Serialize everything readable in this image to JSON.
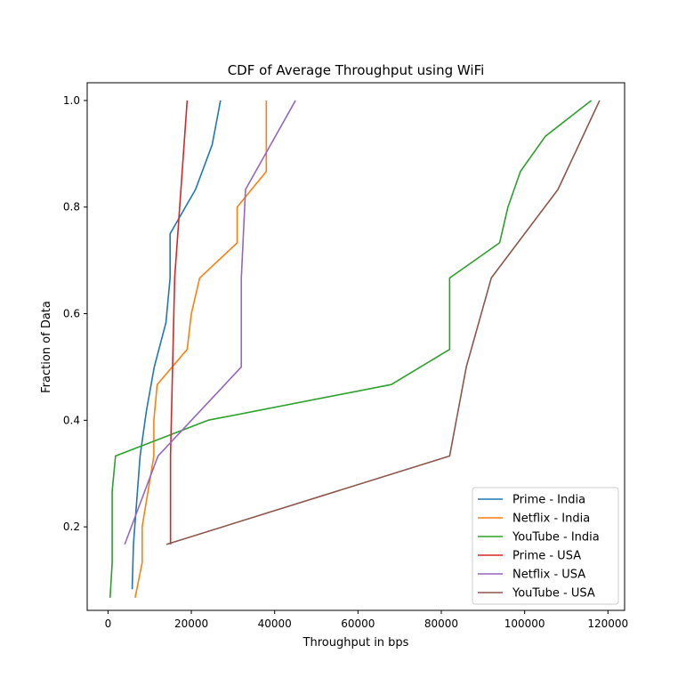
{
  "chart_data": {
    "type": "line",
    "title": "CDF of Average Throughput using WiFi",
    "xlabel": "Throughput in bps",
    "ylabel": "Fraction of Data",
    "xlim": [
      -5000,
      124000
    ],
    "ylim": [
      0.0433,
      1.0333
    ],
    "xticks": [
      0,
      20000,
      40000,
      60000,
      80000,
      100000,
      120000
    ],
    "xtick_labels": [
      "0",
      "20000",
      "40000",
      "60000",
      "80000",
      "100000",
      "120000"
    ],
    "yticks": [
      0.2,
      0.4,
      0.6,
      0.8,
      1.0
    ],
    "ytick_labels": [
      "0.2",
      "0.4",
      "0.6",
      "0.8",
      "1.0"
    ],
    "grid": false,
    "legend_position": "bottom-right",
    "series": [
      {
        "name": "Prime - India",
        "color": "#1f77b4",
        "points": [
          [
            5800,
            0.083
          ],
          [
            6100,
            0.167
          ],
          [
            6900,
            0.25
          ],
          [
            7700,
            0.333
          ],
          [
            9200,
            0.417
          ],
          [
            11100,
            0.5
          ],
          [
            13900,
            0.583
          ],
          [
            14900,
            0.667
          ],
          [
            14900,
            0.75
          ],
          [
            21000,
            0.833
          ],
          [
            25000,
            0.917
          ],
          [
            27000,
            1.0
          ]
        ]
      },
      {
        "name": "Netflix - India",
        "color": "#ff7f0e",
        "points": [
          [
            6500,
            0.067
          ],
          [
            8200,
            0.133
          ],
          [
            8200,
            0.2
          ],
          [
            11000,
            0.333
          ],
          [
            11000,
            0.4
          ],
          [
            11800,
            0.467
          ],
          [
            19000,
            0.533
          ],
          [
            20000,
            0.6
          ],
          [
            22000,
            0.667
          ],
          [
            31000,
            0.733
          ],
          [
            31000,
            0.8
          ],
          [
            38000,
            0.867
          ],
          [
            38000,
            1.0
          ]
        ]
      },
      {
        "name": "YouTube - India",
        "color": "#2ca02c",
        "points": [
          [
            500,
            0.067
          ],
          [
            1000,
            0.133
          ],
          [
            1000,
            0.267
          ],
          [
            1800,
            0.333
          ],
          [
            24000,
            0.4
          ],
          [
            68000,
            0.467
          ],
          [
            82000,
            0.533
          ],
          [
            82000,
            0.667
          ],
          [
            94000,
            0.733
          ],
          [
            96000,
            0.8
          ],
          [
            99000,
            0.867
          ],
          [
            105000,
            0.933
          ],
          [
            116000,
            1.0
          ]
        ]
      },
      {
        "name": "Prime - USA",
        "color": "#d62728",
        "points": [
          [
            15000,
            0.167
          ],
          [
            15000,
            0.333
          ],
          [
            15500,
            0.5
          ],
          [
            16000,
            0.667
          ],
          [
            17500,
            0.833
          ],
          [
            19000,
            1.0
          ]
        ]
      },
      {
        "name": "Netflix - USA",
        "color": "#9467bd",
        "points": [
          [
            4000,
            0.167
          ],
          [
            12000,
            0.333
          ],
          [
            32000,
            0.5
          ],
          [
            32000,
            0.667
          ],
          [
            33000,
            0.833
          ],
          [
            45000,
            1.0
          ]
        ]
      },
      {
        "name": "YouTube - USA",
        "color": "#8c564b",
        "points": [
          [
            14000,
            0.167
          ],
          [
            82000,
            0.333
          ],
          [
            86000,
            0.5
          ],
          [
            92000,
            0.667
          ],
          [
            108000,
            0.833
          ],
          [
            118000,
            1.0
          ]
        ]
      }
    ]
  }
}
